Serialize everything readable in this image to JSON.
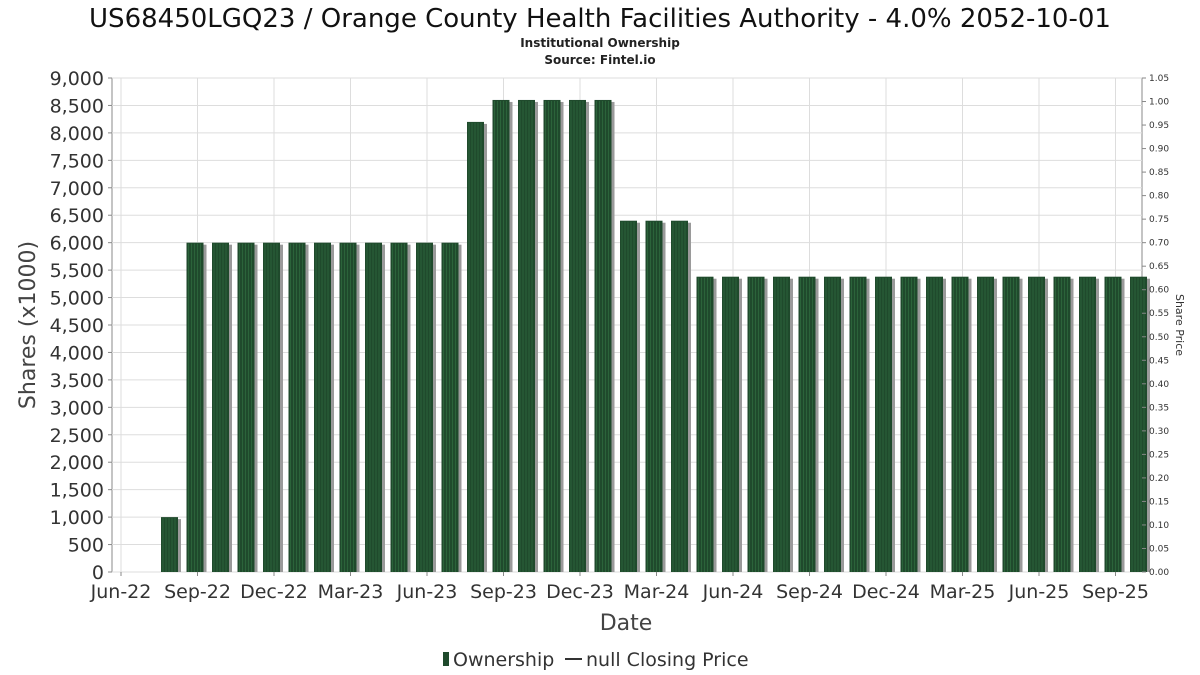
{
  "colors": {
    "bar": "#1f4a2c",
    "bar_stripe": "#2f6a3f",
    "shadow": "#9a9a9a",
    "grid": "#dddddd",
    "axis": "#888888"
  },
  "chart_data": {
    "type": "bar",
    "title": "US68450LGQ23 / Orange County Health Facilities Authority - 4.0% 2052-10-01",
    "subtitle": "Institutional Ownership",
    "source": "Source: Fintel.io",
    "xlabel": "Date",
    "ylabel": "Shares (x1000)",
    "ylabel_right": "Share Price",
    "ylim": [
      0,
      9000
    ],
    "ylim_right": [
      0,
      1.05
    ],
    "yticks": [
      "0",
      "500",
      "1,000",
      "1,500",
      "2,000",
      "2,500",
      "3,000",
      "3,500",
      "4,000",
      "4,500",
      "5,000",
      "5,500",
      "6,000",
      "6,500",
      "7,000",
      "7,500",
      "8,000",
      "8,500",
      "9,000"
    ],
    "yticks_right": [
      "0.00",
      "0.05",
      "0.10",
      "0.15",
      "0.20",
      "0.25",
      "0.30",
      "0.35",
      "0.40",
      "0.45",
      "0.50",
      "0.55",
      "0.60",
      "0.65",
      "0.70",
      "0.75",
      "0.80",
      "0.85",
      "0.90",
      "0.95",
      "1.00",
      "1.05"
    ],
    "xticks": [
      "Jun-22",
      "Sep-22",
      "Dec-22",
      "Mar-23",
      "Jun-23",
      "Sep-23",
      "Dec-23",
      "Mar-24",
      "Jun-24",
      "Sep-24",
      "Dec-24",
      "Mar-25",
      "Jun-25",
      "Sep-25"
    ],
    "series": [
      {
        "name": "Ownership",
        "values": [
          1000,
          6000,
          6000,
          6000,
          6000,
          6000,
          6000,
          6000,
          6000,
          6000,
          6000,
          6000,
          8200,
          8600,
          8600,
          8600,
          8600,
          8600,
          6400,
          6400,
          6400,
          5380,
          5380,
          5380,
          5380,
          5380,
          5380,
          5380,
          5380,
          5380,
          5380,
          5380,
          5380,
          5380,
          5380,
          5380,
          5380,
          5380,
          5380
        ]
      }
    ],
    "legend": [
      {
        "label": "Ownership",
        "kind": "bar"
      },
      {
        "label": "null Closing Price",
        "kind": "line"
      }
    ],
    "grid": true
  }
}
